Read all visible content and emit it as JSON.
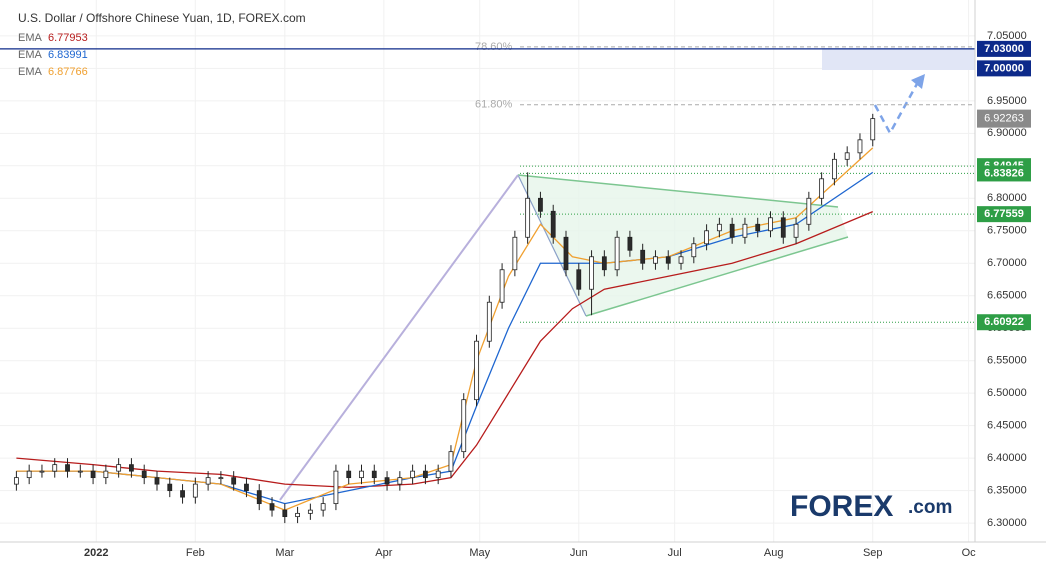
{
  "chart_data": {
    "type": "candlestick",
    "title": "U.S. Dollar / Offshore Chinese Yuan, 1D, FOREX.com",
    "logo": {
      "main": "FOREX",
      "suffix": ".com"
    },
    "xlim": [
      -26,
      276
    ],
    "ylim": [
      6.274,
      7.096
    ],
    "xticks": [
      {
        "value": 1,
        "label": "2022"
      },
      {
        "value": 32,
        "label": "Feb"
      },
      {
        "value": 60,
        "label": "Mar"
      },
      {
        "value": 91,
        "label": "Apr"
      },
      {
        "value": 121,
        "label": "May"
      },
      {
        "value": 152,
        "label": "Jun"
      },
      {
        "value": 182,
        "label": "Jul"
      },
      {
        "value": 213,
        "label": "Aug"
      },
      {
        "value": 244,
        "label": "Sep"
      },
      {
        "value": 274,
        "label": "Oc"
      }
    ],
    "yticks": [
      {
        "value": 6.3,
        "label": "6.30000"
      },
      {
        "value": 6.35,
        "label": "6.35000"
      },
      {
        "value": 6.4,
        "label": "6.40000"
      },
      {
        "value": 6.45,
        "label": "6.45000"
      },
      {
        "value": 6.5,
        "label": "6.50000"
      },
      {
        "value": 6.55,
        "label": "6.55000"
      },
      {
        "value": 6.6,
        "label": "6.60000"
      },
      {
        "value": 6.65,
        "label": "6.65000"
      },
      {
        "value": 6.7,
        "label": "6.70000"
      },
      {
        "value": 6.75,
        "label": "6.75000"
      },
      {
        "value": 6.8,
        "label": "6.80000"
      },
      {
        "value": 6.85,
        "label": "6.85000"
      },
      {
        "value": 6.9,
        "label": "6.90000"
      },
      {
        "value": 6.95,
        "label": "6.95000"
      },
      {
        "value": 7.0,
        "label": "7.00000"
      },
      {
        "value": 7.05,
        "label": "7.05000"
      }
    ],
    "candles": {
      "up_color": "#ffffff",
      "down_color": "#2b2b2b",
      "outline": "#222222",
      "x": [
        -24,
        -20,
        -16,
        -12,
        -8,
        -4,
        0,
        4,
        8,
        12,
        16,
        20,
        24,
        28,
        32,
        36,
        40,
        44,
        48,
        52,
        56,
        60,
        64,
        68,
        72,
        76,
        80,
        84,
        88,
        92,
        96,
        100,
        104,
        108,
        112,
        116,
        120,
        124,
        128,
        132,
        136,
        140,
        144,
        148,
        152,
        156,
        160,
        164,
        168,
        172,
        176,
        180,
        184,
        188,
        192,
        196,
        200,
        204,
        208,
        212,
        216,
        220,
        224,
        228,
        232,
        236,
        240,
        244
      ],
      "open": [
        6.36,
        6.37,
        6.38,
        6.38,
        6.39,
        6.38,
        6.38,
        6.37,
        6.38,
        6.39,
        6.38,
        6.37,
        6.36,
        6.35,
        6.34,
        6.36,
        6.37,
        6.37,
        6.36,
        6.35,
        6.33,
        6.32,
        6.31,
        6.315,
        6.32,
        6.33,
        6.38,
        6.37,
        6.38,
        6.37,
        6.36,
        6.37,
        6.38,
        6.37,
        6.38,
        6.41,
        6.49,
        6.58,
        6.64,
        6.69,
        6.74,
        6.8,
        6.78,
        6.74,
        6.69,
        6.66,
        6.71,
        6.69,
        6.74,
        6.72,
        6.7,
        6.71,
        6.7,
        6.71,
        6.73,
        6.75,
        6.76,
        6.74,
        6.76,
        6.75,
        6.77,
        6.74,
        6.76,
        6.8,
        6.83,
        6.86,
        6.87,
        6.89
      ],
      "high": [
        6.38,
        6.39,
        6.39,
        6.4,
        6.4,
        6.39,
        6.39,
        6.39,
        6.4,
        6.4,
        6.39,
        6.38,
        6.37,
        6.36,
        6.37,
        6.38,
        6.38,
        6.38,
        6.37,
        6.36,
        6.34,
        6.33,
        6.325,
        6.33,
        6.34,
        6.39,
        6.39,
        6.39,
        6.39,
        6.38,
        6.38,
        6.39,
        6.39,
        6.39,
        6.42,
        6.5,
        6.59,
        6.65,
        6.7,
        6.75,
        6.84,
        6.81,
        6.79,
        6.75,
        6.7,
        6.72,
        6.72,
        6.75,
        6.75,
        6.73,
        6.72,
        6.72,
        6.72,
        6.74,
        6.76,
        6.77,
        6.77,
        6.77,
        6.77,
        6.78,
        6.78,
        6.77,
        6.81,
        6.84,
        6.87,
        6.88,
        6.9,
        6.93
      ],
      "low": [
        6.35,
        6.36,
        6.37,
        6.37,
        6.37,
        6.37,
        6.36,
        6.36,
        6.37,
        6.37,
        6.36,
        6.35,
        6.34,
        6.33,
        6.33,
        6.35,
        6.36,
        6.35,
        6.34,
        6.32,
        6.31,
        6.3,
        6.3,
        6.305,
        6.31,
        6.32,
        6.36,
        6.36,
        6.36,
        6.35,
        6.35,
        6.36,
        6.36,
        6.36,
        6.37,
        6.4,
        6.48,
        6.57,
        6.63,
        6.68,
        6.73,
        6.77,
        6.73,
        6.68,
        6.65,
        6.62,
        6.68,
        6.68,
        6.71,
        6.69,
        6.69,
        6.69,
        6.69,
        6.7,
        6.72,
        6.74,
        6.73,
        6.73,
        6.74,
        6.74,
        6.73,
        6.73,
        6.75,
        6.79,
        6.82,
        6.85,
        6.86,
        6.88
      ],
      "close": [
        6.37,
        6.38,
        6.38,
        6.39,
        6.38,
        6.38,
        6.37,
        6.38,
        6.39,
        6.38,
        6.37,
        6.36,
        6.35,
        6.34,
        6.36,
        6.37,
        6.37,
        6.36,
        6.35,
        6.33,
        6.32,
        6.31,
        6.315,
        6.32,
        6.33,
        6.38,
        6.37,
        6.38,
        6.37,
        6.36,
        6.37,
        6.38,
        6.37,
        6.38,
        6.41,
        6.49,
        6.58,
        6.64,
        6.69,
        6.74,
        6.8,
        6.78,
        6.74,
        6.69,
        6.66,
        6.71,
        6.69,
        6.74,
        6.72,
        6.7,
        6.71,
        6.7,
        6.71,
        6.73,
        6.75,
        6.76,
        6.74,
        6.76,
        6.75,
        6.77,
        6.74,
        6.76,
        6.8,
        6.83,
        6.86,
        6.87,
        6.89,
        6.92263
      ]
    },
    "series": [
      {
        "name": "EMA",
        "color": "#b71c1c",
        "x": [
          -24,
          0,
          20,
          40,
          60,
          80,
          100,
          112,
          120,
          130,
          140,
          150,
          160,
          180,
          200,
          220,
          244
        ],
        "values": [
          6.4,
          6.39,
          6.38,
          6.375,
          6.36,
          6.355,
          6.36,
          6.37,
          6.42,
          6.5,
          6.58,
          6.63,
          6.66,
          6.68,
          6.7,
          6.73,
          6.77953
        ]
      },
      {
        "name": "EMA",
        "color": "#1e66d0",
        "x": [
          -24,
          0,
          20,
          40,
          60,
          80,
          100,
          112,
          120,
          130,
          140,
          150,
          160,
          180,
          200,
          220,
          244
        ],
        "values": [
          6.38,
          6.38,
          6.37,
          6.36,
          6.33,
          6.35,
          6.37,
          6.38,
          6.48,
          6.6,
          6.7,
          6.7,
          6.7,
          6.71,
          6.74,
          6.76,
          6.83991
        ]
      },
      {
        "name": "EMA",
        "color": "#f0a030",
        "x": [
          -24,
          0,
          20,
          40,
          60,
          80,
          100,
          112,
          120,
          130,
          140,
          150,
          160,
          180,
          200,
          220,
          244
        ],
        "values": [
          6.38,
          6.38,
          6.37,
          6.36,
          6.32,
          6.36,
          6.37,
          6.39,
          6.55,
          6.68,
          6.76,
          6.71,
          6.7,
          6.71,
          6.75,
          6.77,
          6.87766
        ]
      }
    ],
    "fib_levels": [
      {
        "value": 7.033,
        "label": "78.60%"
      },
      {
        "value": 6.944,
        "label": "61.80%"
      }
    ],
    "levels": [
      {
        "value": 7.03,
        "label": "7.03000",
        "color": "#0d2a8a",
        "line": "solid"
      },
      {
        "value": 7.0,
        "label": "7.00000",
        "color": "#0d2a8a",
        "line": "none"
      },
      {
        "value": 6.84945,
        "label": "6.84945",
        "color": "#2e9e46",
        "line": "dotted"
      },
      {
        "value": 6.83826,
        "label": "6.83826",
        "color": "#2e9e46",
        "line": "dotted"
      },
      {
        "value": 6.77559,
        "label": "6.77559",
        "color": "#2e9e46",
        "line": "dotted"
      },
      {
        "value": 6.60922,
        "label": "6.60922",
        "color": "#2e9e46",
        "line": "dotted"
      }
    ]
  }
}
